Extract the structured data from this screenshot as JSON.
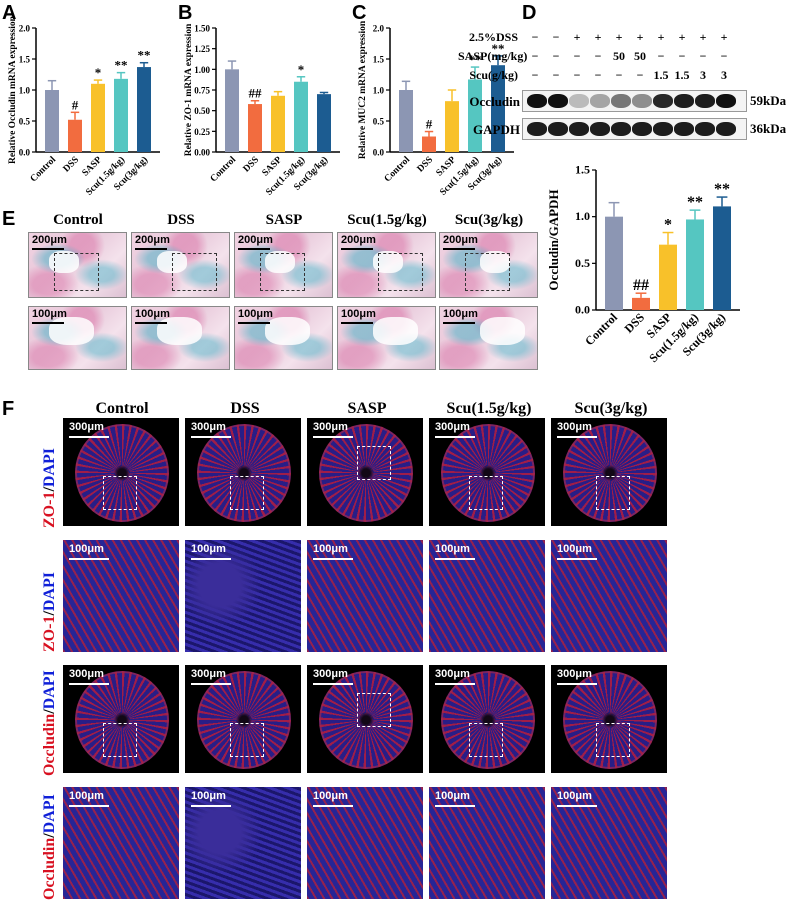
{
  "panels": {
    "A": "A",
    "B": "B",
    "C": "C",
    "D": "D",
    "E": "E",
    "F": "F"
  },
  "groups": [
    "Control",
    "DSS",
    "SASP",
    "Scu(1.5g/kg)",
    "Scu(3g/kg)"
  ],
  "colors": {
    "Control": "#8c96b3",
    "DSS": "#f26c3f",
    "SASP": "#f8c12a",
    "Scu15": "#55c6c1",
    "Scu3": "#1c5c91"
  },
  "chart_data": [
    {
      "type": "bar",
      "panel": "A",
      "categories": [
        "Control",
        "DSS",
        "SASP",
        "Scu(1.5g/kg)",
        "Scu(3g/kg)"
      ],
      "values": [
        1.0,
        0.52,
        1.1,
        1.18,
        1.37
      ],
      "errors": [
        0.15,
        0.12,
        0.06,
        0.1,
        0.07
      ],
      "sig": [
        "",
        "#",
        "*",
        "**",
        "**"
      ],
      "ylabel": "Relative Occludin mRNA expression",
      "ylim": [
        0,
        2.0
      ],
      "yticks": [
        "0.0",
        "0.5",
        "1.0",
        "1.5",
        "2.0"
      ],
      "tickvals": [
        0,
        0.5,
        1.0,
        1.5,
        2.0
      ]
    },
    {
      "type": "bar",
      "panel": "B",
      "categories": [
        "Control",
        "DSS",
        "SASP",
        "Scu(1.5g/kg)",
        "Scu(3g/kg)"
      ],
      "values": [
        1.0,
        0.58,
        0.68,
        0.85,
        0.7
      ],
      "errors": [
        0.1,
        0.04,
        0.05,
        0.06,
        0.02
      ],
      "sig": [
        "",
        "##",
        "",
        "*",
        ""
      ],
      "ylabel": "Relative ZO-1 mRNA expression",
      "ylim": [
        0,
        1.5
      ],
      "yticks": [
        "0.00",
        "0.25",
        "0.50",
        "0.75",
        "1.00",
        "1.25",
        "1.50"
      ],
      "tickvals": [
        0,
        0.25,
        0.5,
        0.75,
        1.0,
        1.25,
        1.5
      ]
    },
    {
      "type": "bar",
      "panel": "C",
      "categories": [
        "Control",
        "DSS",
        "SASP",
        "Scu(1.5g/kg)",
        "Scu(3g/kg)"
      ],
      "values": [
        1.0,
        0.25,
        0.82,
        1.17,
        1.4
      ],
      "errors": [
        0.14,
        0.08,
        0.18,
        0.2,
        0.15
      ],
      "sig": [
        "",
        "#",
        "",
        "**",
        "**"
      ],
      "ylabel": "Relative MUC2 mRNA expression",
      "ylim": [
        0,
        2.0
      ],
      "yticks": [
        "0.0",
        "0.5",
        "1.0",
        "1.5",
        "2.0"
      ],
      "tickvals": [
        0,
        0.5,
        1.0,
        1.5,
        2.0
      ]
    },
    {
      "type": "bar",
      "panel": "D",
      "categories": [
        "Control",
        "DSS",
        "SASP",
        "Scu(1.5g/kg)",
        "Scu(3g/kg)"
      ],
      "values": [
        1.0,
        0.13,
        0.7,
        0.97,
        1.11
      ],
      "errors": [
        0.15,
        0.05,
        0.13,
        0.1,
        0.1
      ],
      "sig": [
        "",
        "##",
        "*",
        "**",
        "**"
      ],
      "ylabel": "Occludin/GAPDH",
      "ylim": [
        0,
        1.5
      ],
      "yticks": [
        "0.0",
        "0.5",
        "1.0",
        "1.5"
      ],
      "tickvals": [
        0,
        0.5,
        1.0,
        1.5
      ]
    }
  ],
  "western": {
    "rows": [
      {
        "label": "2.5%DSS",
        "signs": [
          "−",
          "−",
          "+",
          "+",
          "+",
          "+",
          "+",
          "+",
          "+",
          "+"
        ]
      },
      {
        "label": "SASP(mg/kg)",
        "signs": [
          "−",
          "−",
          "−",
          "−",
          "50",
          "50",
          "−",
          "−",
          "−",
          "−"
        ]
      },
      {
        "label": "Scu(g/kg)",
        "signs": [
          "−",
          "−",
          "−",
          "−",
          "−",
          "−",
          "1.5",
          "1.5",
          "3",
          "3"
        ]
      }
    ],
    "blots": [
      {
        "name": "Occludin",
        "kda": "59kDa"
      },
      {
        "name": "GAPDH",
        "kda": "36kDa"
      }
    ]
  },
  "panelE": {
    "scale_top": "200μm",
    "scale_bottom": "100μm"
  },
  "panelF": {
    "row_labels": {
      "zo1": "ZO-1",
      "occludin": "Occludin",
      "dapi": "DAPI",
      "slash": "/"
    },
    "scale_top": "300μm",
    "scale_bottom": "100μm"
  }
}
